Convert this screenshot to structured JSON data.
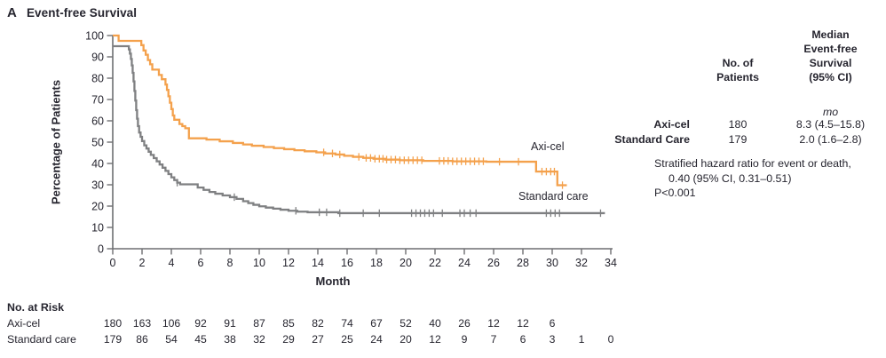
{
  "panel": {
    "letter": "A",
    "title": "Event-free Survival"
  },
  "chart_data": {
    "type": "line",
    "subtype": "kaplan-meier-step",
    "title": "Event-free Survival",
    "xlabel": "Month",
    "ylabel": "Percentage of Patients",
    "xlim": [
      0,
      34
    ],
    "ylim": [
      0,
      100
    ],
    "xticks": [
      0,
      2,
      4,
      6,
      8,
      10,
      12,
      14,
      16,
      18,
      20,
      22,
      24,
      26,
      28,
      30,
      32,
      34
    ],
    "yticks": [
      0,
      10,
      20,
      30,
      40,
      50,
      60,
      70,
      80,
      90,
      100
    ],
    "grid": false,
    "axis_color": "#6e6f72",
    "series": [
      {
        "name": "Axi-cel",
        "color": "#F4A14C",
        "end_month": 31.0,
        "steps": [
          [
            0,
            100
          ],
          [
            0.4,
            97.5
          ],
          [
            1.95,
            95.5
          ],
          [
            2.1,
            93
          ],
          [
            2.25,
            91
          ],
          [
            2.4,
            88.5
          ],
          [
            2.55,
            86.5
          ],
          [
            2.7,
            84
          ],
          [
            3.15,
            81.5
          ],
          [
            3.35,
            79.5
          ],
          [
            3.6,
            77
          ],
          [
            3.7,
            74.5
          ],
          [
            3.8,
            71.5
          ],
          [
            3.9,
            68.5
          ],
          [
            4.0,
            65.5
          ],
          [
            4.1,
            62.5
          ],
          [
            4.2,
            60.5
          ],
          [
            4.55,
            58.5
          ],
          [
            4.75,
            57.5
          ],
          [
            4.95,
            56.5
          ],
          [
            5.2,
            51.8
          ],
          [
            6.4,
            51.2
          ],
          [
            7.3,
            50.4
          ],
          [
            8.2,
            49.6
          ],
          [
            8.9,
            48.9
          ],
          [
            9.5,
            48.3
          ],
          [
            10.3,
            47.7
          ],
          [
            11.0,
            47.2
          ],
          [
            11.7,
            46.7
          ],
          [
            12.4,
            46.2
          ],
          [
            13.1,
            45.7
          ],
          [
            13.9,
            45.2
          ],
          [
            14.5,
            44.7
          ],
          [
            15.2,
            44.2
          ],
          [
            15.8,
            43.6
          ],
          [
            16.4,
            43.1
          ],
          [
            17.1,
            42.6
          ],
          [
            17.8,
            42.2
          ],
          [
            18.6,
            41.8
          ],
          [
            19.6,
            41.5
          ],
          [
            21.2,
            41.2
          ],
          [
            23.2,
            41.0
          ],
          [
            25.5,
            40.8
          ],
          [
            28.9,
            36.2
          ],
          [
            30.35,
            29.8
          ]
        ],
        "censor_months": [
          14.4,
          15.0,
          15.5,
          16.8,
          17.3,
          17.6,
          17.9,
          18.2,
          18.45,
          18.7,
          19.0,
          19.3,
          19.6,
          19.9,
          20.2,
          20.5,
          20.8,
          21.1,
          22.3,
          22.6,
          22.9,
          23.2,
          23.5,
          23.8,
          24.1,
          24.4,
          24.7,
          25.0,
          25.3,
          26.4,
          27.7,
          29.3,
          29.6,
          29.9,
          30.15,
          30.7
        ]
      },
      {
        "name": "Standard care",
        "color": "#7F8082",
        "end_month": 33.6,
        "steps": [
          [
            0,
            95
          ],
          [
            1.1,
            93.5
          ],
          [
            1.17,
            91.5
          ],
          [
            1.24,
            89
          ],
          [
            1.3,
            86
          ],
          [
            1.36,
            82.5
          ],
          [
            1.42,
            78.5
          ],
          [
            1.48,
            74
          ],
          [
            1.54,
            69.5
          ],
          [
            1.6,
            65
          ],
          [
            1.66,
            61
          ],
          [
            1.72,
            57.5
          ],
          [
            1.8,
            54.5
          ],
          [
            1.9,
            52.5
          ],
          [
            2.0,
            50.5
          ],
          [
            2.15,
            48.5
          ],
          [
            2.3,
            47
          ],
          [
            2.45,
            45.5
          ],
          [
            2.6,
            44
          ],
          [
            2.8,
            42.5
          ],
          [
            3.0,
            41
          ],
          [
            3.2,
            39.5
          ],
          [
            3.4,
            38
          ],
          [
            3.6,
            36.5
          ],
          [
            3.8,
            35
          ],
          [
            4.0,
            33.5
          ],
          [
            4.2,
            32.2
          ],
          [
            4.4,
            31
          ],
          [
            4.6,
            30.2
          ],
          [
            5.8,
            28.7
          ],
          [
            6.2,
            27.6
          ],
          [
            6.6,
            26.6
          ],
          [
            7.0,
            25.8
          ],
          [
            7.5,
            25.0
          ],
          [
            8.0,
            24.2
          ],
          [
            8.45,
            23.4
          ],
          [
            8.9,
            22.3
          ],
          [
            9.25,
            21.4
          ],
          [
            9.6,
            20.6
          ],
          [
            10.0,
            19.9
          ],
          [
            10.45,
            19.3
          ],
          [
            10.95,
            18.8
          ],
          [
            11.45,
            18.3
          ],
          [
            12.0,
            17.8
          ],
          [
            12.6,
            17.4
          ],
          [
            13.3,
            17.1
          ],
          [
            15.4,
            16.7
          ]
        ],
        "censor_months": [
          4.4,
          8.3,
          12.5,
          14.1,
          14.6,
          15.5,
          17.1,
          18.2,
          20.4,
          20.7,
          21.0,
          21.3,
          21.6,
          21.9,
          22.5,
          23.7,
          24.0,
          24.4,
          24.8,
          29.6,
          29.9,
          30.2,
          30.5,
          33.3
        ]
      }
    ]
  },
  "summary": {
    "patients_header": "No. of\nPatients",
    "median_header": "Median\nEvent-free\nSurvival\n(95% CI)",
    "unit": "mo",
    "rows": [
      {
        "label": "Axi-cel",
        "patients": "180",
        "median": "8.3 (4.5–15.8)"
      },
      {
        "label": "Standard Care",
        "patients": "179",
        "median": "2.0 (1.6–2.8)"
      }
    ]
  },
  "hazard": {
    "line1": "Stratified hazard ratio for event or death,",
    "line2": "0.40 (95% CI, 0.31–0.51)",
    "line3": "P<0.001"
  },
  "risk_table": {
    "title": "No. at Risk",
    "rows": [
      {
        "label": "Axi-cel",
        "values": [
          180,
          163,
          106,
          92,
          91,
          87,
          85,
          82,
          74,
          67,
          52,
          40,
          26,
          12,
          12,
          6
        ]
      },
      {
        "label": "Standard care",
        "values": [
          179,
          86,
          54,
          45,
          38,
          32,
          29,
          27,
          25,
          24,
          20,
          12,
          9,
          7,
          6,
          3,
          1,
          0
        ]
      }
    ]
  }
}
